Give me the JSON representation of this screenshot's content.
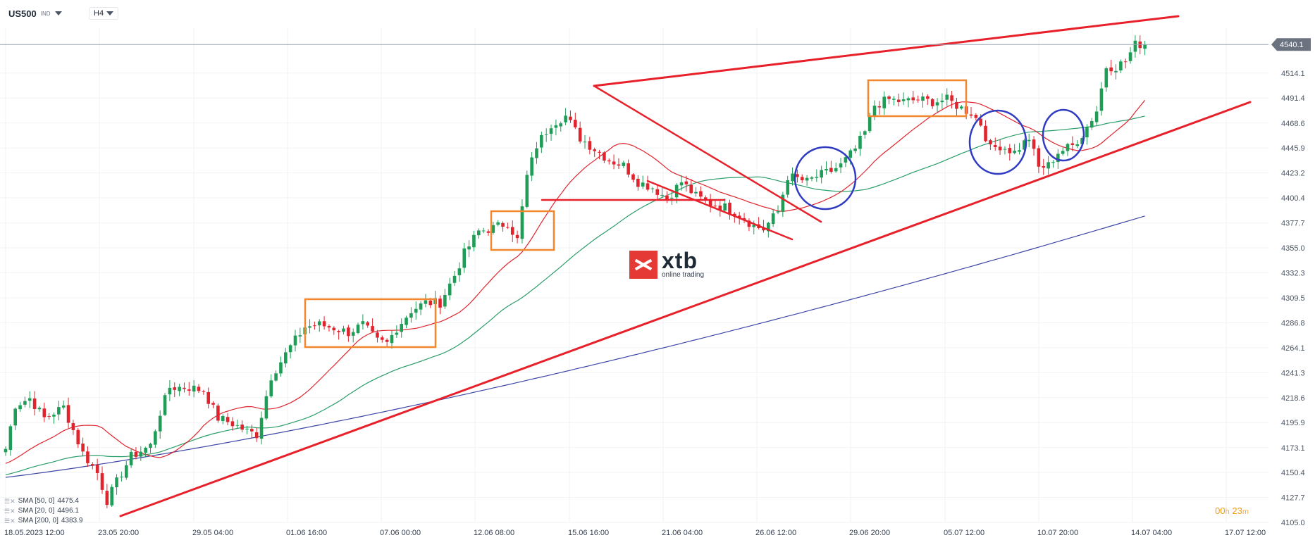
{
  "header": {
    "symbol": "US500",
    "symbol_tag": "IND",
    "timeframe": "H4"
  },
  "logo": {
    "word": "xtb",
    "tagline": "online trading"
  },
  "legend": [
    {
      "label": "SMA [50, 0]",
      "value": "4475.4"
    },
    {
      "label": "SMA [20, 0]",
      "value": "4496.1"
    },
    {
      "label": "SMA [200, 0]",
      "value": "4383.9"
    }
  ],
  "timer": {
    "hours": "00",
    "h_unit": "h",
    "minutes": "23",
    "m_unit": "m"
  },
  "colors": {
    "bull": "#1f9d57",
    "bear": "#e0242e",
    "trendline": "#e8202a",
    "box": "#f2872e",
    "circle": "#2f3cc2",
    "sma20": "#e0242e",
    "sma50": "#2a9d69",
    "sma200": "#3d46a6",
    "price_tag": "#6b7280"
  },
  "chart_data": {
    "type": "candlestick",
    "ylim": [
      4105.0,
      4555.0
    ],
    "y_ticks": [
      "4514.1",
      "4491.4",
      "4468.6",
      "4445.9",
      "4423.2",
      "4400.4",
      "4377.7",
      "4355.0",
      "4332.3",
      "4309.5",
      "4286.8",
      "4264.1",
      "4241.3",
      "4218.6",
      "4195.9",
      "4173.1",
      "4150.4",
      "4127.7",
      "4105.0"
    ],
    "x_ticks": [
      "18.05.2023   12:00",
      "23.05  20:00",
      "29.05  04:00",
      "01.06  16:00",
      "07.06  00:00",
      "12.06  08:00",
      "15.06  16:00",
      "21.06  04:00",
      "26.06  12:00",
      "29.06  20:00",
      "05.07  12:00",
      "10.07  20:00",
      "14.07  04:00",
      "17.07  12:00"
    ],
    "last_price": "4540.1",
    "close_anchors": [
      [
        0,
        4172
      ],
      [
        2,
        4212
      ],
      [
        5,
        4218
      ],
      [
        8,
        4200
      ],
      [
        12,
        4210
      ],
      [
        16,
        4168
      ],
      [
        19,
        4150
      ],
      [
        21,
        4125
      ],
      [
        24,
        4150
      ],
      [
        26,
        4165
      ],
      [
        30,
        4175
      ],
      [
        32,
        4205
      ],
      [
        34,
        4228
      ],
      [
        38,
        4228
      ],
      [
        41,
        4225
      ],
      [
        44,
        4200
      ],
      [
        47,
        4195
      ],
      [
        50,
        4188
      ],
      [
        52,
        4185
      ],
      [
        55,
        4238
      ],
      [
        59,
        4265
      ],
      [
        62,
        4283
      ],
      [
        65,
        4285
      ],
      [
        68,
        4282
      ],
      [
        71,
        4278
      ],
      [
        74,
        4285
      ],
      [
        77,
        4270
      ],
      [
        79,
        4268
      ],
      [
        81,
        4282
      ],
      [
        84,
        4298
      ],
      [
        87,
        4305
      ],
      [
        90,
        4305
      ],
      [
        93,
        4330
      ],
      [
        95,
        4350
      ],
      [
        98,
        4370
      ],
      [
        101,
        4373
      ],
      [
        104,
        4378
      ],
      [
        106,
        4362
      ],
      [
        108,
        4420
      ],
      [
        110,
        4448
      ],
      [
        113,
        4468
      ],
      [
        116,
        4475
      ],
      [
        119,
        4455
      ],
      [
        122,
        4445
      ],
      [
        125,
        4435
      ],
      [
        128,
        4430
      ],
      [
        131,
        4415
      ],
      [
        134,
        4410
      ],
      [
        137,
        4400
      ],
      [
        140,
        4415
      ],
      [
        143,
        4402
      ],
      [
        146,
        4395
      ],
      [
        149,
        4392
      ],
      [
        152,
        4385
      ],
      [
        155,
        4375
      ],
      [
        157,
        4372
      ],
      [
        160,
        4388
      ],
      [
        162,
        4420
      ],
      [
        164,
        4418
      ],
      [
        166,
        4415
      ],
      [
        168,
        4420
      ],
      [
        171,
        4425
      ],
      [
        173,
        4430
      ],
      [
        176,
        4445
      ],
      [
        178,
        4460
      ],
      [
        180,
        4485
      ],
      [
        183,
        4490
      ],
      [
        186,
        4488
      ],
      [
        189,
        4490
      ],
      [
        192,
        4488
      ],
      [
        195,
        4490
      ],
      [
        198,
        4482
      ],
      [
        200,
        4478
      ],
      [
        202,
        4468
      ],
      [
        204,
        4445
      ],
      [
        206,
        4448
      ],
      [
        209,
        4442
      ],
      [
        212,
        4455
      ],
      [
        214,
        4428
      ],
      [
        216,
        4430
      ],
      [
        218,
        4442
      ],
      [
        221,
        4448
      ],
      [
        223,
        4458
      ],
      [
        226,
        4480
      ],
      [
        228,
        4520
      ],
      [
        230,
        4520
      ],
      [
        232,
        4525
      ],
      [
        234,
        4540
      ],
      [
        236,
        4541
      ]
    ],
    "series": [
      {
        "name": "SMA [20, 0]",
        "value": 4496.1
      },
      {
        "name": "SMA [50, 0]",
        "value": 4475.4
      },
      {
        "name": "SMA [200, 0]",
        "value": 4383.9
      }
    ]
  }
}
